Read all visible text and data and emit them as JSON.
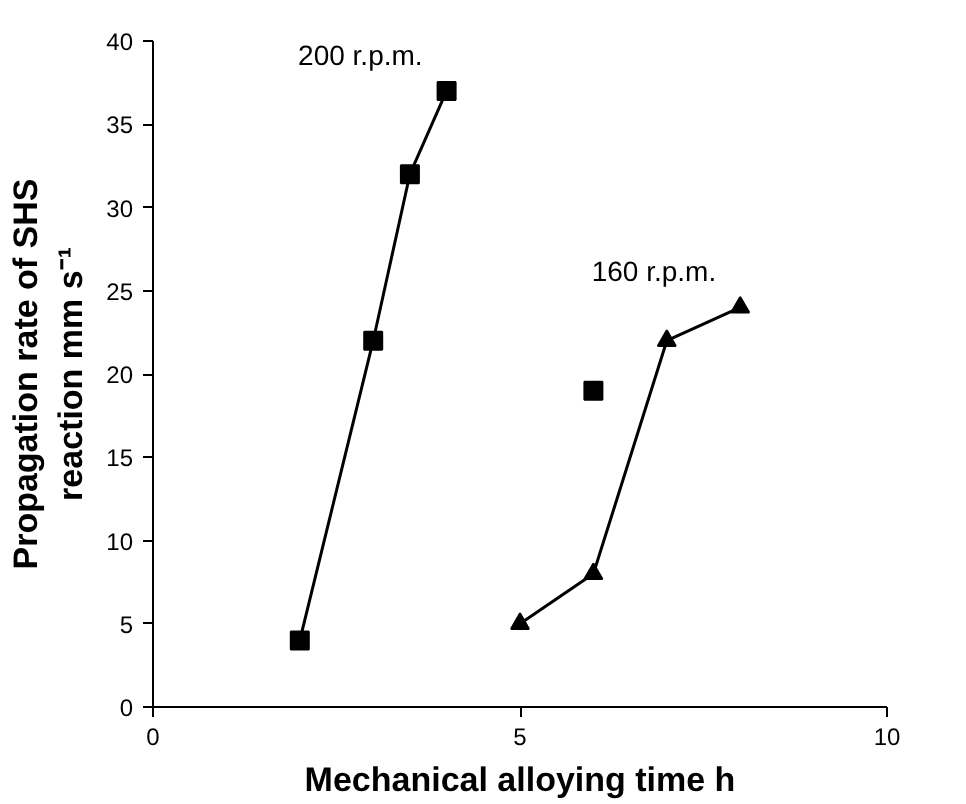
{
  "chart_data": {
    "type": "line",
    "xlabel": "Mechanical alloying time h",
    "ylabel": "Propagation rate of SHS\nreaction mm s⁻¹",
    "xlim": [
      0,
      10
    ],
    "ylim": [
      0,
      40
    ],
    "xticks": [
      0,
      5,
      10
    ],
    "yticks": [
      0,
      5,
      10,
      15,
      20,
      25,
      30,
      35,
      40
    ],
    "grid": false,
    "series": [
      {
        "name": "200 r.p.m.",
        "color": "#000000",
        "marker": "square",
        "x": [
          2,
          3,
          3.5,
          4
        ],
        "values": [
          4,
          22,
          32,
          37
        ]
      },
      {
        "name": "160 r.p.m.",
        "color": "#000000",
        "marker": "triangle",
        "x": [
          5,
          6,
          7,
          8
        ],
        "values": [
          5,
          8,
          22,
          24
        ]
      },
      {
        "type": "scatter",
        "color": "#000000",
        "marker": "square",
        "x": [
          6
        ],
        "values": [
          19
        ]
      }
    ]
  }
}
